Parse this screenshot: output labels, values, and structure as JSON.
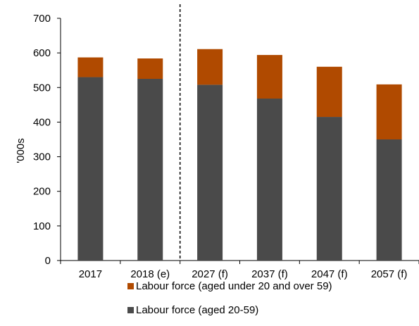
{
  "chart_data": {
    "type": "bar",
    "stacked": true,
    "categories": [
      "2017",
      "2018 (e)",
      "2027 (f)",
      "2037 (f)",
      "2047 (f)",
      "2057 (f)"
    ],
    "series": [
      {
        "name": "Labour force (aged 20-59)",
        "color": "#4a4a4a",
        "values": [
          530,
          525,
          508,
          468,
          415,
          350
        ]
      },
      {
        "name": "Labour force (aged under 20 and over 59)",
        "color": "#b04a00",
        "values": [
          57,
          59,
          103,
          126,
          145,
          159
        ]
      }
    ],
    "ylabel": "'000s",
    "xlabel": "",
    "title": "",
    "ylim": [
      0,
      700
    ],
    "yticks": [
      0,
      100,
      200,
      300,
      400,
      500,
      600,
      700
    ],
    "grid": false,
    "divider_after_category": "2018 (e)",
    "legend": {
      "placement": "bottom",
      "entries": [
        {
          "label": "Labour force (aged under 20 and over 59)",
          "color": "#b04a00"
        },
        {
          "label": "Labour force (aged 20-59)",
          "color": "#4a4a4a"
        }
      ]
    }
  }
}
